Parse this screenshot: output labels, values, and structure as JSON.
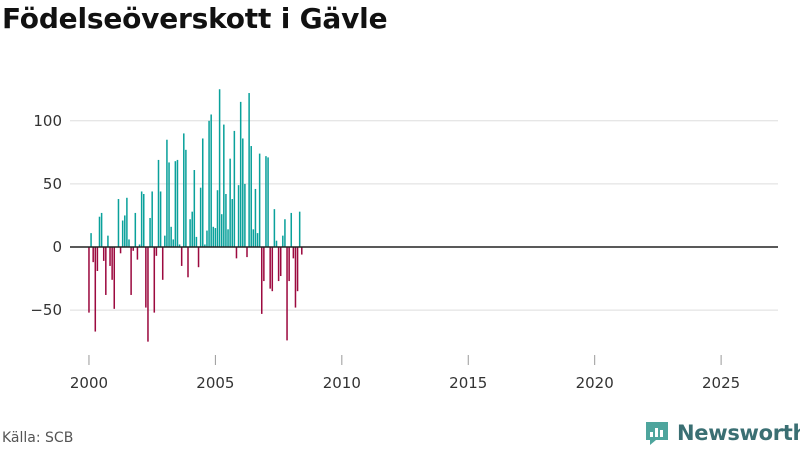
{
  "chart_data": {
    "type": "bar",
    "title": "Födelseöverskott i Gävle",
    "xlabel": "",
    "ylabel": "",
    "xlim": [
      1999.25,
      2027.25
    ],
    "ylim": [
      -80,
      130
    ],
    "yticks": [
      -50,
      0,
      50,
      100
    ],
    "ytick_labels": [
      "−50",
      "0",
      "50",
      "100"
    ],
    "xticks": [
      2000,
      2005,
      2010,
      2015,
      2020,
      2025
    ],
    "xtick_labels": [
      "2000",
      "2005",
      "2010",
      "2015",
      "2020",
      "2025"
    ],
    "positive_color": "#0aa19b",
    "negative_color": "#9c0a3f",
    "zero_line_color": "#222222",
    "grid_color": "#dddddd",
    "frequency": "monthly",
    "start_year": 2000,
    "values": [
      -52,
      11,
      -12,
      -67,
      -19,
      24,
      27,
      -11,
      -38,
      9,
      -15,
      -26,
      -49,
      0,
      38,
      -5,
      21,
      25,
      39,
      6,
      -38,
      -3,
      27,
      -10,
      2,
      44,
      42,
      -48,
      -75,
      23,
      44,
      -52,
      -7,
      69,
      44,
      -26,
      9,
      85,
      67,
      16,
      6,
      68,
      69,
      2,
      -15,
      90,
      77,
      -24,
      22,
      28,
      61,
      8,
      -16,
      47,
      86,
      2,
      13,
      100,
      105,
      16,
      15,
      45,
      125,
      26,
      97,
      42,
      14,
      70,
      38,
      92,
      -9,
      49,
      115,
      86,
      50,
      -8,
      122,
      80,
      14,
      46,
      11,
      74,
      -53,
      -27,
      72,
      71,
      -33,
      -35,
      30,
      5,
      -27,
      -23,
      9,
      22,
      -74,
      -27,
      27,
      -9,
      -48,
      -35,
      28,
      -6
    ]
  },
  "footer": {
    "source": "Källa: SCB",
    "brand": "Newsworthy"
  },
  "colors": {
    "brand_text": "#3a6f73",
    "brand_icon": "#4ea59d"
  }
}
